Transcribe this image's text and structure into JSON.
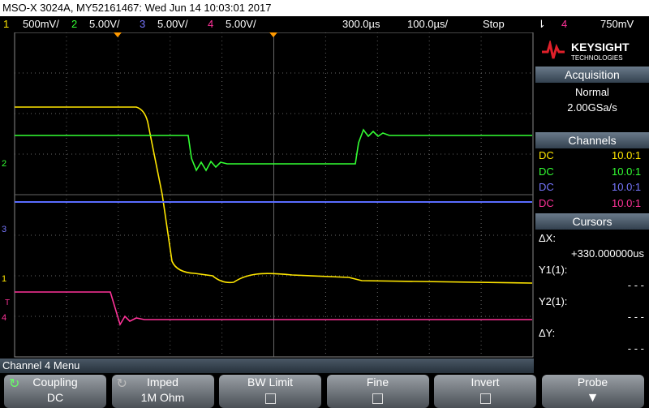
{
  "header": {
    "title": "MSO-X 3024A, MY52161467: Wed Jun 14 10:03:01 2017"
  },
  "channel_bar": {
    "channels": [
      {
        "number": "1",
        "scale": "500mV/"
      },
      {
        "number": "2",
        "scale": "5.00V/"
      },
      {
        "number": "3",
        "scale": "5.00V/"
      },
      {
        "number": "4",
        "scale": "5.00V/"
      }
    ],
    "delay": "300.0µs",
    "timebase": "100.0µs/",
    "status": "Stop",
    "trigger_source": "4",
    "trigger_level": "750mV"
  },
  "markers": [
    "2",
    "3",
    "1",
    "T",
    "4"
  ],
  "brand": {
    "name": "KEYSIGHT",
    "sub": "TECHNOLOGIES"
  },
  "acquisition": {
    "title": "Acquisition",
    "mode": "Normal",
    "rate": "2.00GSa/s"
  },
  "channels": {
    "title": "Channels",
    "rows": [
      [
        "DC",
        "10.0:1"
      ],
      [
        "DC",
        "10.0:1"
      ],
      [
        "DC",
        "10.0:1"
      ],
      [
        "DC",
        "10.0:1"
      ]
    ]
  },
  "cursors": {
    "title": "Cursors",
    "dx_label": "ΔX:",
    "dx_value": "+330.000000us",
    "y1_label": "Y1(1):",
    "y1_value": "- - -",
    "y2_label": "Y2(1):",
    "y2_value": "- - -",
    "dy_label": "ΔY:",
    "dy_value": "- - -"
  },
  "menu": {
    "title": "Channel 4 Menu",
    "softkeys": [
      {
        "label": "Coupling",
        "value": "DC"
      },
      {
        "label": "Imped",
        "value": "1M Ohm"
      },
      {
        "label": "BW Limit"
      },
      {
        "label": "Fine"
      },
      {
        "label": "Invert"
      },
      {
        "label": "Probe"
      }
    ]
  }
}
